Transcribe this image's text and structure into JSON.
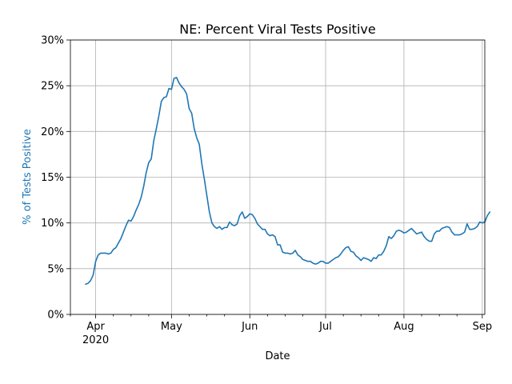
{
  "chart_data": {
    "type": "line",
    "title": "NE: Percent Viral Tests Positive",
    "xlabel": "Date",
    "ylabel": "% of Tests Positive",
    "xlim": [
      "2020-03-22",
      "2020-09-02"
    ],
    "ylim": [
      0,
      30
    ],
    "grid": true,
    "colors": {
      "series": "#1f77b4",
      "ylabel": "#1f77b4"
    },
    "x_ticks": [
      {
        "date": "2020-04-01",
        "label": "Apr",
        "sublabel": "2020"
      },
      {
        "date": "2020-05-01",
        "label": "May",
        "sublabel": ""
      },
      {
        "date": "2020-06-01",
        "label": "Jun",
        "sublabel": ""
      },
      {
        "date": "2020-07-01",
        "label": "Jul",
        "sublabel": ""
      },
      {
        "date": "2020-08-01",
        "label": "Aug",
        "sublabel": ""
      },
      {
        "date": "2020-09-01",
        "label": "Sep",
        "sublabel": ""
      }
    ],
    "x_minor_ticks": [
      "2020-03-22",
      "2020-04-08",
      "2020-04-15",
      "2020-04-22",
      "2020-05-08",
      "2020-05-15",
      "2020-05-22",
      "2020-06-08",
      "2020-06-15",
      "2020-06-22",
      "2020-07-08",
      "2020-07-15",
      "2020-07-22",
      "2020-08-08",
      "2020-08-15",
      "2020-08-22"
    ],
    "y_ticks": [
      {
        "value": 0,
        "label": "0%"
      },
      {
        "value": 5,
        "label": "5%"
      },
      {
        "value": 10,
        "label": "10%"
      },
      {
        "value": 15,
        "label": "15%"
      },
      {
        "value": 20,
        "label": "20%"
      },
      {
        "value": 25,
        "label": "25%"
      },
      {
        "value": 30,
        "label": "30%"
      }
    ],
    "series": [
      {
        "points": [
          [
            "2020-03-28",
            3.3
          ],
          [
            "2020-03-29",
            3.4
          ],
          [
            "2020-03-30",
            3.7
          ],
          [
            "2020-03-31",
            4.3
          ],
          [
            "2020-04-01",
            5.8
          ],
          [
            "2020-04-02",
            6.5
          ],
          [
            "2020-04-03",
            6.7
          ],
          [
            "2020-04-04",
            6.7
          ],
          [
            "2020-04-05",
            6.7
          ],
          [
            "2020-04-06",
            6.6
          ],
          [
            "2020-04-07",
            6.7
          ],
          [
            "2020-04-08",
            7.1
          ],
          [
            "2020-04-09",
            7.3
          ],
          [
            "2020-04-10",
            7.8
          ],
          [
            "2020-04-11",
            8.3
          ],
          [
            "2020-04-12",
            9.0
          ],
          [
            "2020-04-13",
            9.7
          ],
          [
            "2020-04-14",
            10.3
          ],
          [
            "2020-04-15",
            10.2
          ],
          [
            "2020-04-16",
            10.7
          ],
          [
            "2020-04-17",
            11.4
          ],
          [
            "2020-04-18",
            12.0
          ],
          [
            "2020-04-19",
            12.8
          ],
          [
            "2020-04-20",
            14.0
          ],
          [
            "2020-04-21",
            15.5
          ],
          [
            "2020-04-22",
            16.6
          ],
          [
            "2020-04-23",
            17.0
          ],
          [
            "2020-04-24",
            19.0
          ],
          [
            "2020-04-25",
            20.3
          ],
          [
            "2020-04-26",
            21.7
          ],
          [
            "2020-04-27",
            23.3
          ],
          [
            "2020-04-28",
            23.7
          ],
          [
            "2020-04-29",
            23.8
          ],
          [
            "2020-04-30",
            24.7
          ],
          [
            "2020-05-01",
            24.6
          ],
          [
            "2020-05-02",
            25.8
          ],
          [
            "2020-05-03",
            25.9
          ],
          [
            "2020-05-04",
            25.3
          ],
          [
            "2020-05-05",
            24.9
          ],
          [
            "2020-05-06",
            24.6
          ],
          [
            "2020-05-07",
            24.1
          ],
          [
            "2020-05-08",
            22.5
          ],
          [
            "2020-05-09",
            22.0
          ],
          [
            "2020-05-10",
            20.3
          ],
          [
            "2020-05-11",
            19.3
          ],
          [
            "2020-05-12",
            18.6
          ],
          [
            "2020-05-13",
            16.5
          ],
          [
            "2020-05-14",
            14.8
          ],
          [
            "2020-05-15",
            13.0
          ],
          [
            "2020-05-16",
            11.2
          ],
          [
            "2020-05-17",
            10.0
          ],
          [
            "2020-05-18",
            9.6
          ],
          [
            "2020-05-19",
            9.4
          ],
          [
            "2020-05-20",
            9.6
          ],
          [
            "2020-05-21",
            9.3
          ],
          [
            "2020-05-22",
            9.5
          ],
          [
            "2020-05-23",
            9.5
          ],
          [
            "2020-05-24",
            10.1
          ],
          [
            "2020-05-25",
            9.8
          ],
          [
            "2020-05-26",
            9.7
          ],
          [
            "2020-05-27",
            9.9
          ],
          [
            "2020-05-28",
            10.8
          ],
          [
            "2020-05-29",
            11.2
          ],
          [
            "2020-05-30",
            10.5
          ],
          [
            "2020-05-31",
            10.7
          ],
          [
            "2020-06-01",
            11.0
          ],
          [
            "2020-06-02",
            10.9
          ],
          [
            "2020-06-03",
            10.5
          ],
          [
            "2020-06-04",
            9.9
          ],
          [
            "2020-06-05",
            9.6
          ],
          [
            "2020-06-06",
            9.3
          ],
          [
            "2020-06-07",
            9.3
          ],
          [
            "2020-06-08",
            8.8
          ],
          [
            "2020-06-09",
            8.6
          ],
          [
            "2020-06-10",
            8.7
          ],
          [
            "2020-06-11",
            8.5
          ],
          [
            "2020-06-12",
            7.6
          ],
          [
            "2020-06-13",
            7.6
          ],
          [
            "2020-06-14",
            6.8
          ],
          [
            "2020-06-15",
            6.7
          ],
          [
            "2020-06-16",
            6.7
          ],
          [
            "2020-06-17",
            6.6
          ],
          [
            "2020-06-18",
            6.7
          ],
          [
            "2020-06-19",
            7.0
          ],
          [
            "2020-06-20",
            6.5
          ],
          [
            "2020-06-21",
            6.3
          ],
          [
            "2020-06-22",
            6.0
          ],
          [
            "2020-06-23",
            5.9
          ],
          [
            "2020-06-24",
            5.8
          ],
          [
            "2020-06-25",
            5.8
          ],
          [
            "2020-06-26",
            5.6
          ],
          [
            "2020-06-27",
            5.5
          ],
          [
            "2020-06-28",
            5.6
          ],
          [
            "2020-06-29",
            5.8
          ],
          [
            "2020-06-30",
            5.8
          ],
          [
            "2020-07-01",
            5.6
          ],
          [
            "2020-07-02",
            5.6
          ],
          [
            "2020-07-03",
            5.8
          ],
          [
            "2020-07-04",
            6.0
          ],
          [
            "2020-07-05",
            6.2
          ],
          [
            "2020-07-06",
            6.3
          ],
          [
            "2020-07-07",
            6.6
          ],
          [
            "2020-07-08",
            7.0
          ],
          [
            "2020-07-09",
            7.3
          ],
          [
            "2020-07-10",
            7.4
          ],
          [
            "2020-07-11",
            6.9
          ],
          [
            "2020-07-12",
            6.8
          ],
          [
            "2020-07-13",
            6.4
          ],
          [
            "2020-07-14",
            6.2
          ],
          [
            "2020-07-15",
            5.9
          ],
          [
            "2020-07-16",
            6.2
          ],
          [
            "2020-07-17",
            6.1
          ],
          [
            "2020-07-18",
            6.0
          ],
          [
            "2020-07-19",
            5.8
          ],
          [
            "2020-07-20",
            6.2
          ],
          [
            "2020-07-21",
            6.1
          ],
          [
            "2020-07-22",
            6.5
          ],
          [
            "2020-07-23",
            6.5
          ],
          [
            "2020-07-24",
            6.9
          ],
          [
            "2020-07-25",
            7.5
          ],
          [
            "2020-07-26",
            8.5
          ],
          [
            "2020-07-27",
            8.3
          ],
          [
            "2020-07-28",
            8.6
          ],
          [
            "2020-07-29",
            9.1
          ],
          [
            "2020-07-30",
            9.2
          ],
          [
            "2020-07-31",
            9.1
          ],
          [
            "2020-08-01",
            8.9
          ],
          [
            "2020-08-02",
            9.0
          ],
          [
            "2020-08-03",
            9.2
          ],
          [
            "2020-08-04",
            9.4
          ],
          [
            "2020-08-05",
            9.1
          ],
          [
            "2020-08-06",
            8.8
          ],
          [
            "2020-08-07",
            8.9
          ],
          [
            "2020-08-08",
            9.0
          ],
          [
            "2020-08-09",
            8.5
          ],
          [
            "2020-08-10",
            8.2
          ],
          [
            "2020-08-11",
            8.0
          ],
          [
            "2020-08-12",
            8.0
          ],
          [
            "2020-08-13",
            8.8
          ],
          [
            "2020-08-14",
            9.1
          ],
          [
            "2020-08-15",
            9.1
          ],
          [
            "2020-08-16",
            9.4
          ],
          [
            "2020-08-17",
            9.5
          ],
          [
            "2020-08-18",
            9.6
          ],
          [
            "2020-08-19",
            9.5
          ],
          [
            "2020-08-20",
            9.0
          ],
          [
            "2020-08-21",
            8.7
          ],
          [
            "2020-08-22",
            8.7
          ],
          [
            "2020-08-23",
            8.7
          ],
          [
            "2020-08-24",
            8.8
          ],
          [
            "2020-08-25",
            9.0
          ],
          [
            "2020-08-26",
            9.9
          ],
          [
            "2020-08-27",
            9.3
          ],
          [
            "2020-08-28",
            9.3
          ],
          [
            "2020-08-29",
            9.4
          ],
          [
            "2020-08-30",
            9.6
          ],
          [
            "2020-08-31",
            10.1
          ],
          [
            "2020-09-01",
            10.0
          ],
          [
            "2020-09-02",
            10.1
          ],
          [
            "2020-09-03",
            10.8
          ],
          [
            "2020-09-04",
            11.2
          ]
        ]
      }
    ]
  }
}
